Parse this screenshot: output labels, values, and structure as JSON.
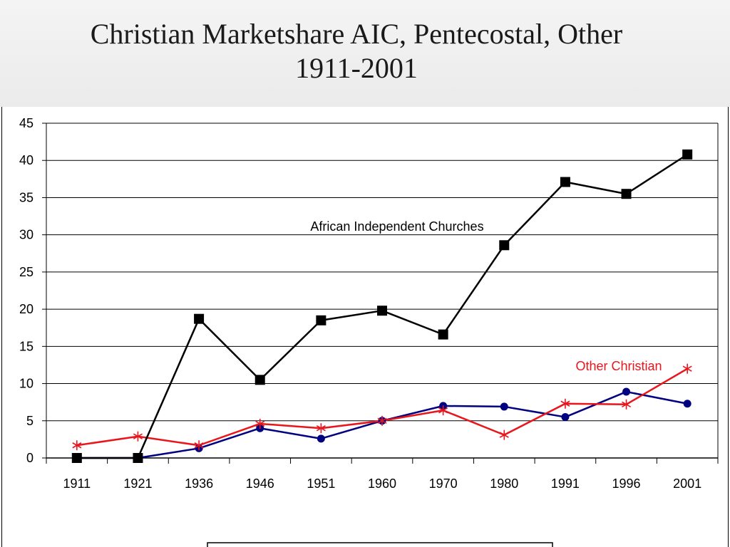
{
  "slide": {
    "title_line1": "Christian Marketshare AIC, Pentecostal, Other",
    "title_line2": "1911-2001"
  },
  "colors": {
    "aic": "#000000",
    "pentecostal": "#000080",
    "other": "#e8161c",
    "grid": "#000000"
  },
  "chart_data": {
    "type": "line",
    "categories": [
      "1911",
      "1921",
      "1936",
      "1946",
      "1951",
      "1960",
      "1970",
      "1980",
      "1991",
      "1996",
      "2001"
    ],
    "ylim": [
      0,
      45
    ],
    "yticks": [
      0,
      5,
      10,
      15,
      20,
      25,
      30,
      35,
      40,
      45
    ],
    "grid": true,
    "series": [
      {
        "key": "aic",
        "name": "African Independent Churches",
        "marker": "square",
        "values": [
          0,
          0,
          18.7,
          10.5,
          18.5,
          19.8,
          16.6,
          28.6,
          37.1,
          35.5,
          40.8
        ]
      },
      {
        "key": "pentecostal",
        "marker": "circle",
        "values": [
          0,
          0,
          1.3,
          4.0,
          2.6,
          5.0,
          7.0,
          6.9,
          5.5,
          8.9,
          7.3
        ]
      },
      {
        "key": "other",
        "name": "Other Christian",
        "marker": "asterisk",
        "values": [
          1.7,
          2.9,
          1.7,
          4.6,
          4.0,
          5.0,
          6.4,
          3.1,
          7.3,
          7.2,
          12.0
        ]
      }
    ],
    "annotations": [
      {
        "text": "African Independent Churches",
        "series": "aic"
      },
      {
        "text": "Other Christian",
        "series": "other"
      }
    ]
  }
}
